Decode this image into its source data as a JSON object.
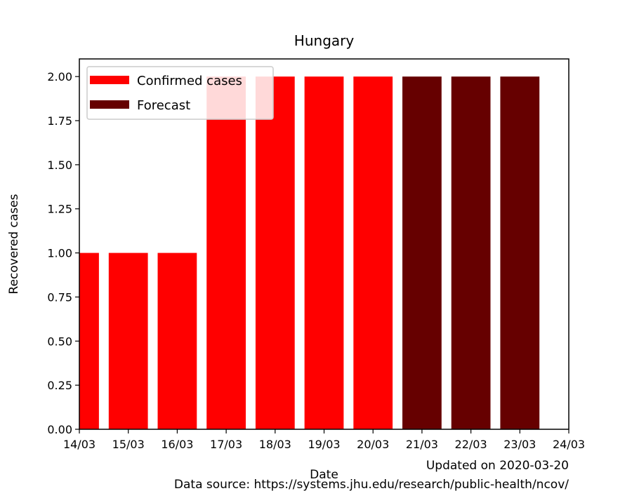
{
  "chart_data": {
    "type": "bar",
    "title": "Hungary",
    "xlabel": "Date",
    "ylabel": "Recovered cases",
    "x_tick_labels": [
      "14/03",
      "15/03",
      "16/03",
      "17/03",
      "18/03",
      "19/03",
      "20/03",
      "21/03",
      "22/03",
      "23/03",
      "24/03"
    ],
    "y_tick_labels": [
      "0.00",
      "0.25",
      "0.50",
      "0.75",
      "1.00",
      "1.25",
      "1.50",
      "1.75",
      "2.00"
    ],
    "ylim": [
      0,
      2.1
    ],
    "series": [
      {
        "name": "Confirmed cases",
        "color": "#ff0000",
        "x": [
          "14/03",
          "15/03",
          "16/03",
          "17/03",
          "18/03",
          "19/03",
          "20/03"
        ],
        "values": [
          1,
          1,
          1,
          2,
          2,
          2,
          2
        ]
      },
      {
        "name": "Forecast",
        "color": "#660000",
        "x": [
          "21/03",
          "22/03",
          "23/03"
        ],
        "values": [
          2,
          2,
          2
        ]
      }
    ],
    "legend_position": "top-left",
    "grid": false
  },
  "footer": {
    "updated": "Updated on 2020-03-20",
    "source": "Data source: https://systems.jhu.edu/research/public-health/ncov/"
  }
}
